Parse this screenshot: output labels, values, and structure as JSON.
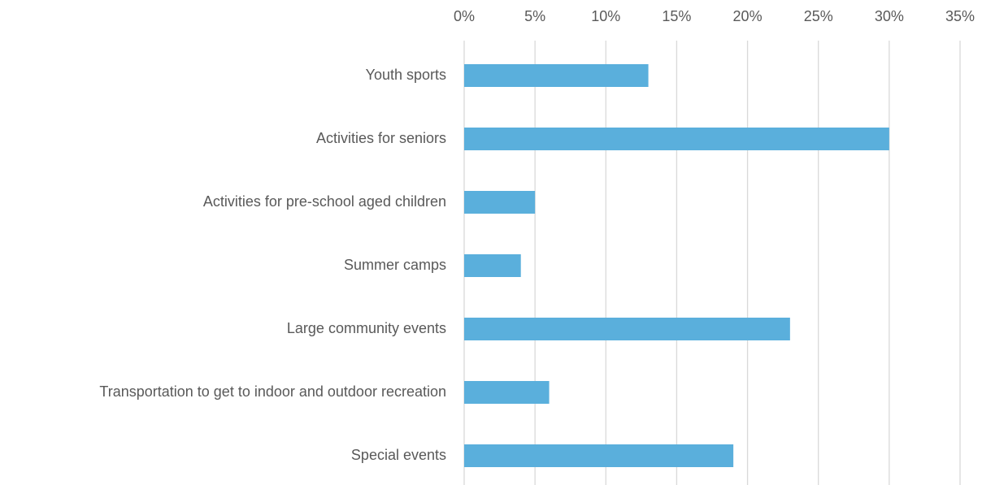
{
  "chart_data": {
    "type": "bar",
    "orientation": "horizontal",
    "categories": [
      "Youth sports",
      "Activities for seniors",
      "Activities for pre-school aged children",
      "Summer camps",
      "Large community events",
      "Transportation to get to indoor and outdoor recreation",
      "Special events"
    ],
    "values": [
      13,
      30,
      5,
      4,
      23,
      6,
      19
    ],
    "color": "#5aafdc",
    "xlim": [
      0,
      35
    ],
    "xticks": [
      {
        "value": 0,
        "label": "0%"
      },
      {
        "value": 5,
        "label": "5%"
      },
      {
        "value": 10,
        "label": "10%"
      },
      {
        "value": 15,
        "label": "15%"
      },
      {
        "value": 20,
        "label": "20%"
      },
      {
        "value": 25,
        "label": "25%"
      },
      {
        "value": 30,
        "label": "30%"
      },
      {
        "value": 35,
        "label": "35%"
      }
    ],
    "grid": true
  }
}
